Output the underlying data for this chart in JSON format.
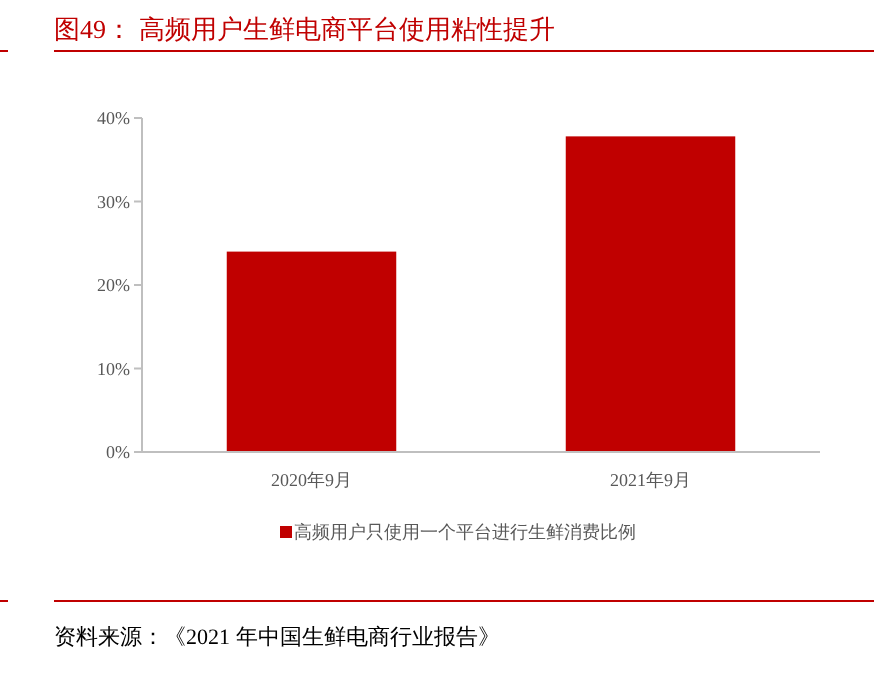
{
  "chart_data": {
    "type": "bar",
    "title": "图49：  高频用户生鲜电商平台使用粘性提升",
    "categories": [
      "2020年9月",
      "2021年9月"
    ],
    "series": [
      {
        "name": "高频用户只使用一个平台进行生鲜消费比例",
        "color": "#c00000",
        "values": [
          24,
          37.8
        ]
      }
    ],
    "ylim": [
      0,
      40
    ],
    "yticks": [
      {
        "value": 0,
        "label": "0%"
      },
      {
        "value": 10,
        "label": "10%"
      },
      {
        "value": 20,
        "label": "20%"
      },
      {
        "value": 30,
        "label": "30%"
      },
      {
        "value": 40,
        "label": "40%"
      }
    ],
    "legend": "bottom",
    "grid": false,
    "annotations": [
      "资料来源：《2021 年中国生鲜电商行业报告》"
    ]
  }
}
